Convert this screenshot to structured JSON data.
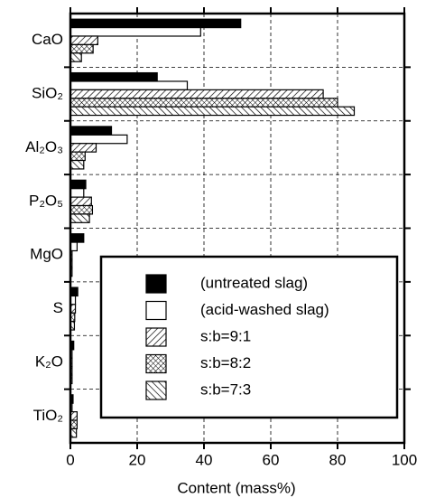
{
  "chart_data": {
    "type": "hbar",
    "categories": [
      "CaO",
      "SiO₂",
      "Al₂O₃",
      "P₂O₅",
      "MgO",
      "S",
      "K₂O",
      "TiO₂"
    ],
    "series": [
      {
        "name": "(untreated slag)",
        "color": "#000000",
        "pattern": "solid",
        "values": [
          51,
          26,
          12.3,
          4.6,
          4,
          2.2,
          1,
          0.8
        ]
      },
      {
        "name": "(acid-washed slag)",
        "color": "#ffffff",
        "pattern": "solid",
        "values": [
          39,
          35,
          17,
          4,
          2,
          1.5,
          0.5,
          0.5
        ]
      },
      {
        "name": "s:b=9:1",
        "color": "#000000",
        "pattern": "diagonal",
        "values": [
          8.2,
          75.7,
          7.7,
          6.3,
          0.5,
          1.5,
          0.5,
          2
        ]
      },
      {
        "name": "s:b=8:2",
        "color": "#000000",
        "pattern": "crosshatch",
        "values": [
          6.8,
          80,
          4.4,
          6.6,
          0.5,
          1.3,
          0.5,
          2
        ]
      },
      {
        "name": "s:b=7:3",
        "color": "#000000",
        "pattern": "backdiagonal",
        "values": [
          3.3,
          85,
          4,
          5.7,
          0.5,
          1.2,
          0.5,
          1.8
        ]
      }
    ],
    "xlabel": "Content (mass%)",
    "xlim": [
      0,
      100
    ],
    "xticks": [
      0,
      20,
      40,
      60,
      80,
      100
    ],
    "grid": true,
    "legend": "lower right"
  }
}
